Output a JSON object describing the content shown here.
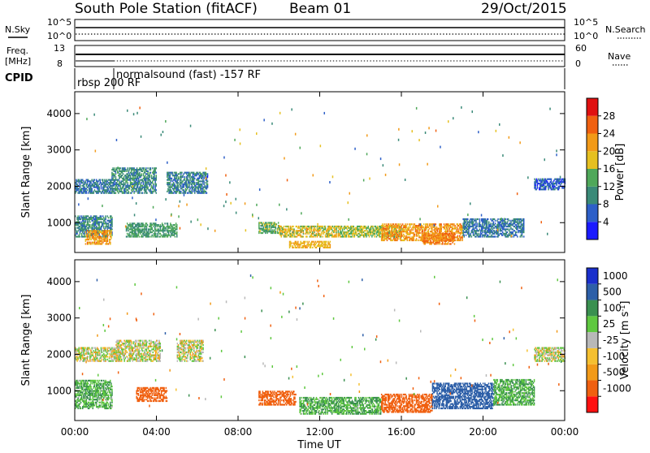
{
  "header": {
    "station": "South Pole Station (fitACF)",
    "beam": "Beam 01",
    "date": "29/Oct/2015"
  },
  "noise_panel": {
    "left_label": "N.Sky",
    "right_label": "N.Search",
    "y_ticks_left": [
      "10^5",
      "10^0"
    ],
    "y_ticks_right": [
      "10^5",
      "10^0"
    ]
  },
  "freq_panel": {
    "left_label_1": "Freq.",
    "left_label_2": "[MHz]",
    "left_tick_top": "13",
    "left_tick_bottom": "8",
    "right_label": "Nave",
    "right_tick_top": "60",
    "right_tick_bottom": "0"
  },
  "cpid": {
    "label": "CPID",
    "mode_1": "rbsp 200 RF",
    "mode_2": "normalsound (fast) -157 RF"
  },
  "colors": {
    "power": [
      "#1a1aff",
      "#2d5fc8",
      "#3a8a78",
      "#4fa85a",
      "#e6c020",
      "#f29a18",
      "#f06010",
      "#e01010"
    ],
    "velocity": [
      "#ff1010",
      "#f06010",
      "#f29a18",
      "#f5c030",
      "#b8b8b8",
      "#5fc840",
      "#3a9050",
      "#2d5fa8",
      "#1a2fcc"
    ]
  },
  "chart_data": [
    {
      "type": "heatmap",
      "name": "power",
      "ylabel": "Slant Range [km]",
      "xlabel": "",
      "x_range_hours": [
        0,
        24
      ],
      "ylim": [
        180,
        4600
      ],
      "y_ticks": [
        1000,
        2000,
        3000,
        4000
      ],
      "colorbar": {
        "label": "Power [dB]",
        "ticks": [
          4,
          8,
          12,
          16,
          20,
          24,
          28
        ],
        "range": [
          0,
          32
        ]
      },
      "regions": [
        {
          "t": [
            0.0,
            1.8
          ],
          "r": [
            600,
            1200
          ],
          "level": 10
        },
        {
          "t": [
            0.5,
            1.8
          ],
          "r": [
            400,
            800
          ],
          "level": 22
        },
        {
          "t": [
            0.0,
            2.0
          ],
          "r": [
            1800,
            2200
          ],
          "level": 8
        },
        {
          "t": [
            1.8,
            4.0
          ],
          "r": [
            1800,
            2500
          ],
          "level": 10
        },
        {
          "t": [
            2.5,
            5.0
          ],
          "r": [
            600,
            1000
          ],
          "level": 12
        },
        {
          "t": [
            4.5,
            6.5
          ],
          "r": [
            1800,
            2400
          ],
          "level": 9
        },
        {
          "t": [
            9.0,
            10.0
          ],
          "r": [
            700,
            1000
          ],
          "level": 14
        },
        {
          "t": [
            10.0,
            13.0
          ],
          "r": [
            600,
            900
          ],
          "level": 18
        },
        {
          "t": [
            10.5,
            12.5
          ],
          "r": [
            300,
            500
          ],
          "level": 20
        },
        {
          "t": [
            13.0,
            16.0
          ],
          "r": [
            600,
            900
          ],
          "level": 16
        },
        {
          "t": [
            15.0,
            19.0
          ],
          "r": [
            500,
            950
          ],
          "level": 22
        },
        {
          "t": [
            17.0,
            18.6
          ],
          "r": [
            400,
            700
          ],
          "level": 24
        },
        {
          "t": [
            19.0,
            22.0
          ],
          "r": [
            600,
            1100
          ],
          "level": 8
        },
        {
          "t": [
            22.5,
            24.0
          ],
          "r": [
            1900,
            2200
          ],
          "level": 6
        }
      ]
    },
    {
      "type": "heatmap",
      "name": "velocity",
      "ylabel": "Slant Range [km]",
      "xlabel": "Time UT",
      "x_ticks": [
        "00:00",
        "04:00",
        "08:00",
        "12:00",
        "16:00",
        "20:00",
        "00:00"
      ],
      "x_range_hours": [
        0,
        24
      ],
      "ylim": [
        180,
        4600
      ],
      "y_ticks": [
        1000,
        2000,
        3000,
        4000
      ],
      "colorbar": {
        "label": "Velocity [m s^-1]",
        "ticks": [
          "1000",
          "500",
          "100",
          "25",
          "-25",
          "-100",
          "-500",
          "-1000"
        ]
      },
      "regions": [
        {
          "t": [
            0.0,
            1.8
          ],
          "r": [
            500,
            1300
          ],
          "level": 100
        },
        {
          "t": [
            0.0,
            2.2
          ],
          "r": [
            1800,
            2200
          ],
          "level": 0
        },
        {
          "t": [
            2.0,
            4.2
          ],
          "r": [
            1800,
            2400
          ],
          "level": 0
        },
        {
          "t": [
            3.0,
            4.5
          ],
          "r": [
            700,
            1100
          ],
          "level": -200
        },
        {
          "t": [
            5.0,
            6.3
          ],
          "r": [
            1800,
            2400
          ],
          "level": 0
        },
        {
          "t": [
            9.0,
            10.8
          ],
          "r": [
            600,
            1000
          ],
          "level": -200
        },
        {
          "t": [
            11.0,
            15.0
          ],
          "r": [
            350,
            800
          ],
          "level": 100
        },
        {
          "t": [
            15.0,
            17.5
          ],
          "r": [
            400,
            900
          ],
          "level": -300
        },
        {
          "t": [
            17.5,
            20.5
          ],
          "r": [
            500,
            1200
          ],
          "level": 500
        },
        {
          "t": [
            20.5,
            22.5
          ],
          "r": [
            600,
            1300
          ],
          "level": 100
        },
        {
          "t": [
            22.5,
            24.0
          ],
          "r": [
            1800,
            2200
          ],
          "level": 0
        }
      ]
    }
  ]
}
